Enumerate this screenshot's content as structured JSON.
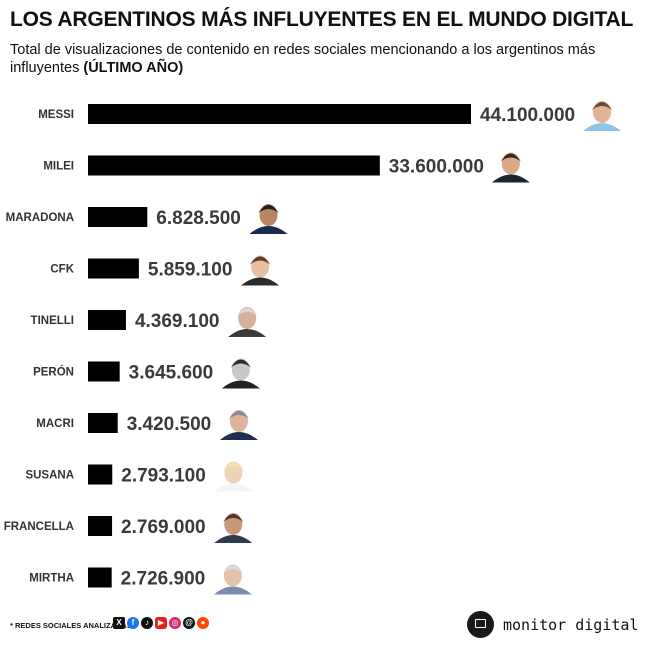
{
  "header": {
    "title": "LOS ARGENTINOS MÁS INFLUYENTES EN EL MUNDO DIGITAL",
    "subtitle": "Total de visualizaciones de contenido en redes sociales mencionando a los argentinos más influyentes",
    "subtitle_bold": "(ÚLTIMO AÑO)"
  },
  "chart_data": {
    "type": "bar",
    "orientation": "horizontal",
    "title": "LOS ARGENTINOS MÁS INFLUYENTES EN EL MUNDO DIGITAL",
    "categories": [
      "MESSI",
      "MILEI",
      "MARADONA",
      "CFK",
      "TINELLI",
      "PERÓN",
      "MACRI",
      "SUSANA",
      "FRANCELLA",
      "MIRTHA"
    ],
    "values": [
      44100000,
      33600000,
      6828500,
      5859100,
      4369100,
      3645600,
      3420500,
      2793100,
      2769000,
      2726900
    ],
    "value_labels": [
      "44.100.000",
      "33.600.000",
      "6.828.500",
      "5.859.100",
      "4.369.100",
      "3.645.600",
      "3.420.500",
      "2.793.100",
      "2.769.000",
      "2.726.900"
    ],
    "bar_color": "#000000",
    "grid": false,
    "legend": "none"
  },
  "footer": {
    "note": "* REDES SOCIALES ANALIZADAS",
    "social_icons": [
      "x-icon",
      "facebook-icon",
      "tiktok-icon",
      "youtube-icon",
      "instagram-icon",
      "threads-icon",
      "reddit-icon"
    ],
    "brand": "monitor digital"
  }
}
